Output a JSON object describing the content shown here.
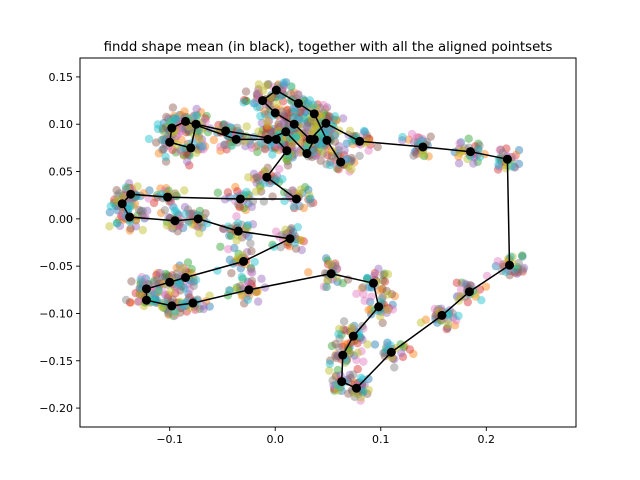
{
  "chart_data": {
    "type": "scatter",
    "title": "findd shape mean (in black), together with all the aligned pointsets",
    "xlabel": "",
    "ylabel": "",
    "xlim": [
      -0.185,
      0.285
    ],
    "ylim": [
      -0.22,
      0.17
    ],
    "x_ticks": [
      -0.1,
      0.0,
      0.1,
      0.2
    ],
    "x_tick_labels": [
      "−0.1",
      "0.0",
      "0.1",
      "0.2"
    ],
    "y_ticks": [
      -0.2,
      -0.15,
      -0.1,
      -0.05,
      0.0,
      0.05,
      0.1,
      0.15
    ],
    "y_tick_labels": [
      "−0.20",
      "−0.15",
      "−0.10",
      "−0.05",
      "0.00",
      "0.05",
      "0.10",
      "0.15"
    ],
    "grid": false,
    "legend": "none",
    "mean_color": "#000000",
    "pointset_colors": [
      "#1f77b4",
      "#ff7f0e",
      "#2ca02c",
      "#d62728",
      "#9467bd",
      "#8c564b",
      "#e377c2",
      "#7f7f7f",
      "#bcbd22",
      "#17becf"
    ],
    "pointset_alpha": 0.45,
    "num_aligned_pointsets": 10,
    "mean_shape_paths": [
      [
        [
          0.062,
          0.06
        ],
        [
          0.049,
          0.083
        ],
        [
          0.037,
          0.111
        ],
        [
          0.022,
          0.122
        ],
        [
          0.001,
          0.136
        ],
        [
          -0.012,
          0.125
        ],
        [
          0.0,
          0.112
        ],
        [
          0.018,
          0.1
        ],
        [
          0.033,
          0.084
        ],
        [
          0.048,
          0.101
        ],
        [
          0.08,
          0.082
        ],
        [
          0.14,
          0.076
        ],
        [
          0.185,
          0.071
        ],
        [
          0.22,
          0.063
        ],
        [
          0.222,
          -0.049
        ],
        [
          0.184,
          -0.077
        ],
        [
          0.158,
          -0.102
        ],
        [
          0.11,
          -0.141
        ],
        [
          0.077,
          -0.179
        ],
        [
          0.063,
          -0.172
        ],
        [
          0.064,
          -0.144
        ],
        [
          0.074,
          -0.124
        ],
        [
          0.098,
          -0.093
        ],
        [
          0.093,
          -0.068
        ],
        [
          0.053,
          -0.058
        ],
        [
          -0.025,
          -0.075
        ],
        [
          -0.078,
          -0.089
        ],
        [
          -0.098,
          -0.092
        ],
        [
          -0.122,
          -0.086
        ],
        [
          -0.122,
          -0.074
        ],
        [
          -0.1,
          -0.067
        ],
        [
          -0.085,
          -0.062
        ],
        [
          -0.03,
          -0.045
        ],
        [
          0.014,
          -0.021
        ],
        [
          -0.035,
          -0.013
        ],
        [
          -0.073,
          0.0
        ],
        [
          -0.095,
          -0.002
        ],
        [
          -0.138,
          0.002
        ],
        [
          -0.145,
          0.016
        ],
        [
          -0.137,
          0.026
        ],
        [
          -0.102,
          0.023
        ],
        [
          -0.033,
          0.021
        ],
        [
          0.02,
          0.021
        ],
        [
          -0.008,
          0.044
        ],
        [
          0.011,
          0.072
        ],
        [
          0.001,
          0.084
        ],
        [
          -0.047,
          0.093
        ],
        [
          -0.075,
          0.1
        ],
        [
          -0.08,
          0.075
        ],
        [
          -0.1,
          0.081
        ],
        [
          -0.098,
          0.096
        ],
        [
          -0.085,
          0.103
        ],
        [
          -0.037,
          0.084
        ],
        [
          -0.007,
          0.084
        ],
        [
          0.01,
          0.092
        ],
        [
          0.03,
          0.069
        ],
        [
          0.037,
          0.084
        ]
      ],
      [
        [
          -0.073,
          0.0
        ],
        [
          -0.073,
          0.0
        ]
      ]
    ]
  }
}
